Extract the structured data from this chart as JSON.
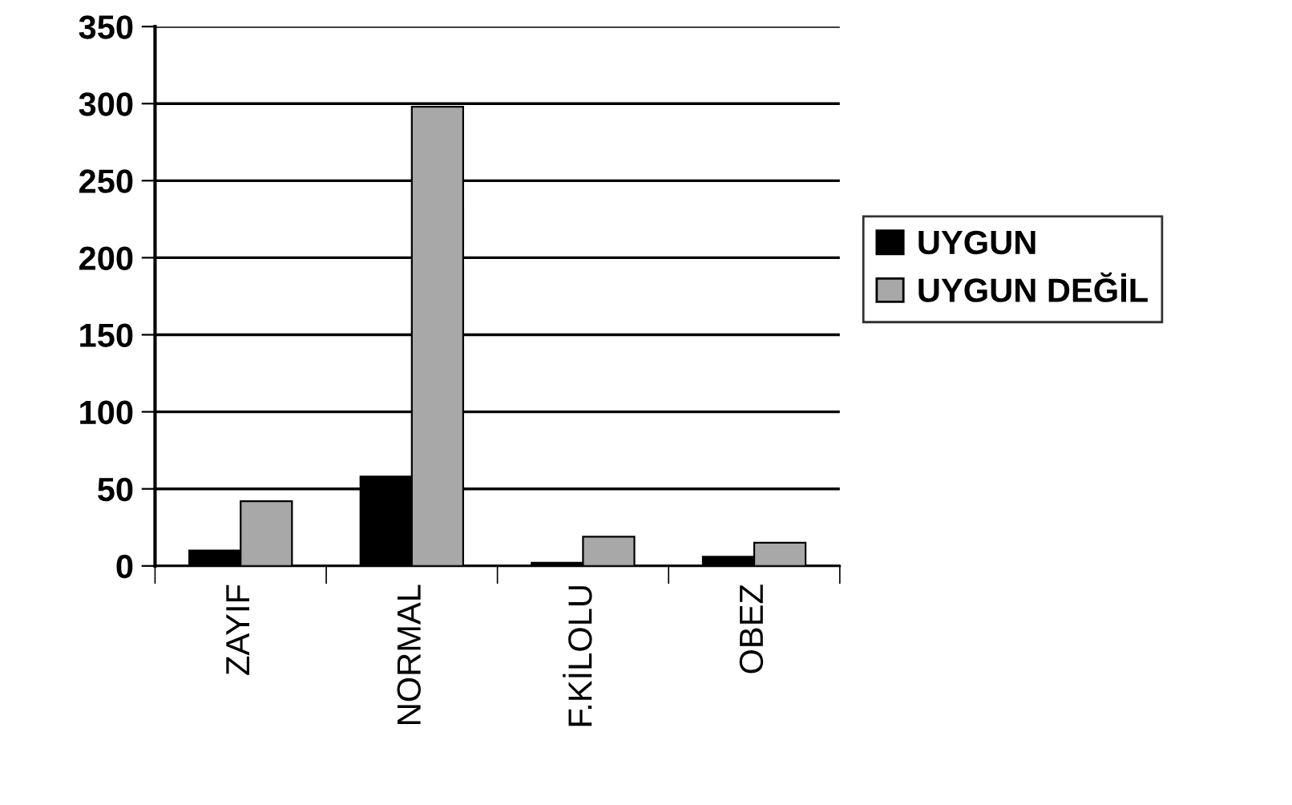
{
  "chart_data": {
    "type": "bar",
    "categories": [
      "ZAYIF",
      "NORMAL",
      "F.KİLOLU",
      "OBEZ"
    ],
    "series": [
      {
        "name": "UYGUN",
        "color": "#000000",
        "values": [
          10,
          58,
          2,
          6
        ]
      },
      {
        "name": "UYGUN DEĞİL",
        "color": "#a8a8a8",
        "values": [
          42,
          298,
          19,
          15
        ]
      }
    ],
    "ylim": [
      0,
      350
    ],
    "yticks": [
      0,
      50,
      100,
      150,
      200,
      250,
      300,
      350
    ],
    "grid": "y",
    "legend": "right"
  }
}
